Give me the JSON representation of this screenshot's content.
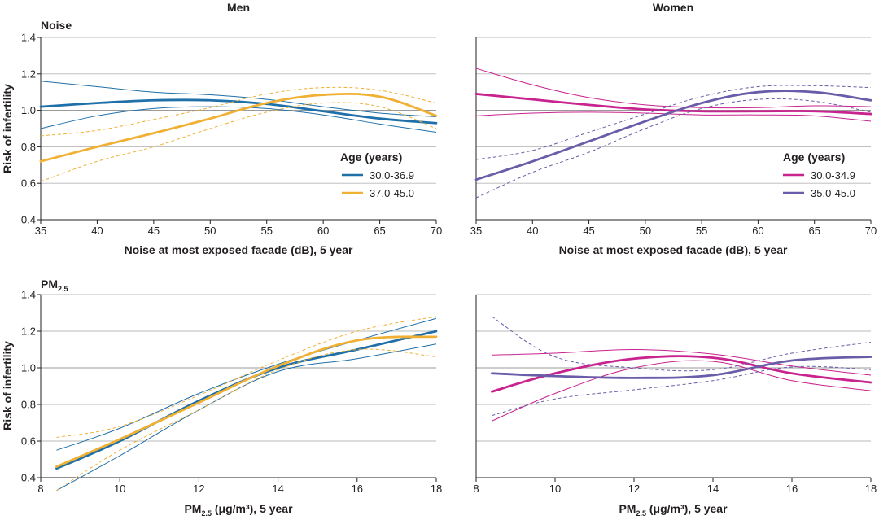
{
  "figure": {
    "columns": [
      "Men",
      "Women"
    ],
    "rows": [
      {
        "label": "Noise",
        "label_sub": ""
      },
      {
        "label": "PM",
        "label_sub": "2.5"
      }
    ],
    "ylabel": "Risk of infertility",
    "xlabels": {
      "noise": {
        "main": "Noise at most exposed facade (dB), 5 year"
      },
      "pm": {
        "prefix": "PM",
        "sub": "2.5",
        "rest": " (μg/m³), 5 year"
      }
    },
    "legend_title": "Age (years)"
  },
  "colors": {
    "men_young": "#1f6fa8",
    "men_old": "#f0b034",
    "women_young": "#c8238e",
    "women_old": "#6a5ca8",
    "grid": "#b8b8b8",
    "axis": "#231f20",
    "ref": "#9a9a9a"
  },
  "chart_data": [
    {
      "id": "noise-men",
      "type": "line",
      "title": "Men",
      "row_label": "Noise",
      "xlabel": "Noise at most exposed facade (dB), 5 year",
      "ylabel": "Risk of infertility",
      "xlim": [
        35,
        70
      ],
      "ylim": [
        0.4,
        1.4
      ],
      "xticks": [
        "35",
        "40",
        "45",
        "50",
        "55",
        "60",
        "65",
        "70"
      ],
      "yticks": [
        "0.4",
        "0.6",
        "0.8",
        "1.0",
        "1.2",
        "1.4"
      ],
      "legend": {
        "title": "Age (years)",
        "position": "right"
      },
      "series": [
        {
          "name": "30.0-36.9",
          "color": "#1f6fa8",
          "ci_style": "solid",
          "x": [
            35,
            40,
            45,
            50,
            55,
            60,
            65,
            70
          ],
          "estimate": [
            1.02,
            1.04,
            1.055,
            1.055,
            1.035,
            0.995,
            0.955,
            0.93
          ],
          "lower": [
            0.9,
            0.97,
            1.01,
            1.02,
            1.01,
            0.975,
            0.925,
            0.88
          ],
          "upper": [
            1.16,
            1.13,
            1.1,
            1.085,
            1.06,
            1.02,
            0.985,
            0.965
          ]
        },
        {
          "name": "37.0-45.0",
          "color": "#f0b034",
          "ci_style": "dashed",
          "x": [
            35,
            40,
            45,
            50,
            55,
            60,
            65,
            70
          ],
          "estimate": [
            0.72,
            0.8,
            0.875,
            0.955,
            1.04,
            1.085,
            1.075,
            0.97
          ],
          "lower": [
            0.61,
            0.72,
            0.8,
            0.9,
            0.99,
            1.04,
            1.02,
            0.9
          ],
          "upper": [
            0.86,
            0.89,
            0.95,
            1.015,
            1.09,
            1.125,
            1.11,
            1.04
          ]
        }
      ]
    },
    {
      "id": "noise-women",
      "type": "line",
      "title": "Women",
      "row_label": "",
      "xlabel": "Noise at most exposed facade (dB), 5 year",
      "ylabel": "",
      "xlim": [
        35,
        70
      ],
      "ylim": [
        0.4,
        1.4
      ],
      "xticks": [
        "35",
        "40",
        "45",
        "50",
        "55",
        "60",
        "65",
        "70"
      ],
      "yticks": [],
      "legend": {
        "title": "Age (years)",
        "position": "right"
      },
      "series": [
        {
          "name": "30.0-34.9",
          "color": "#c8238e",
          "ci_style": "solid",
          "x": [
            35,
            40,
            45,
            50,
            55,
            60,
            65,
            70
          ],
          "estimate": [
            1.09,
            1.06,
            1.03,
            1.005,
            0.995,
            0.995,
            0.995,
            0.98
          ],
          "lower": [
            0.97,
            0.985,
            0.99,
            0.985,
            0.975,
            0.975,
            0.97,
            0.94
          ],
          "upper": [
            1.23,
            1.14,
            1.07,
            1.03,
            1.015,
            1.015,
            1.025,
            1.02
          ]
        },
        {
          "name": "35.0-45.0",
          "color": "#6a5ca8",
          "ci_style": "dashed",
          "x": [
            35,
            40,
            45,
            50,
            55,
            60,
            65,
            70
          ],
          "estimate": [
            0.62,
            0.72,
            0.83,
            0.94,
            1.04,
            1.1,
            1.1,
            1.055
          ],
          "lower": [
            0.52,
            0.66,
            0.77,
            0.9,
            1.01,
            1.06,
            1.05,
            0.99
          ],
          "upper": [
            0.73,
            0.78,
            0.88,
            0.98,
            1.075,
            1.13,
            1.135,
            1.125
          ]
        }
      ]
    },
    {
      "id": "pm-men",
      "type": "line",
      "title": "",
      "row_label": "PM2.5",
      "xlabel": "PM2.5 (μg/m³), 5 year",
      "ylabel": "Risk of infertility",
      "xlim": [
        8,
        18
      ],
      "ylim": [
        0.4,
        1.4
      ],
      "xticks": [
        "8",
        "10",
        "12",
        "14",
        "16",
        "18"
      ],
      "yticks": [
        "0.4",
        "0.6",
        "0.8",
        "1.0",
        "1.2",
        "1.4"
      ],
      "series": [
        {
          "name": "30.0-36.9",
          "color": "#1f6fa8",
          "ci_style": "solid",
          "x": [
            8.4,
            10,
            12,
            14,
            16,
            18
          ],
          "estimate": [
            0.45,
            0.6,
            0.82,
            1.0,
            1.1,
            1.2
          ],
          "lower": [
            0.33,
            0.52,
            0.77,
            0.98,
            1.05,
            1.13
          ],
          "upper": [
            0.55,
            0.67,
            0.86,
            1.02,
            1.15,
            1.27
          ]
        },
        {
          "name": "37.0-45.0",
          "color": "#f0b034",
          "ci_style": "dashed",
          "x": [
            8.4,
            10,
            12,
            14,
            16,
            18
          ],
          "estimate": [
            0.46,
            0.61,
            0.81,
            1.01,
            1.15,
            1.17
          ],
          "lower": [
            0.33,
            0.55,
            0.77,
            0.99,
            1.1,
            1.06
          ],
          "upper": [
            0.62,
            0.68,
            0.85,
            1.04,
            1.2,
            1.28
          ]
        }
      ]
    },
    {
      "id": "pm-women",
      "type": "line",
      "title": "",
      "row_label": "",
      "xlabel": "PM2.5 (μg/m³), 5 year",
      "ylabel": "",
      "xlim": [
        8,
        18
      ],
      "ylim": [
        0.4,
        1.4
      ],
      "xticks": [
        "8",
        "10",
        "12",
        "14",
        "16",
        "18"
      ],
      "yticks": [],
      "series": [
        {
          "name": "30.0-34.9",
          "color": "#c8238e",
          "ci_style": "solid",
          "x": [
            8.4,
            10,
            12,
            14,
            16,
            18
          ],
          "estimate": [
            0.87,
            0.97,
            1.05,
            1.055,
            0.97,
            0.92
          ],
          "lower": [
            0.71,
            0.86,
            1.0,
            1.035,
            0.93,
            0.875
          ],
          "upper": [
            1.07,
            1.08,
            1.1,
            1.075,
            1.01,
            0.96
          ]
        },
        {
          "name": "35.0-45.0",
          "color": "#6a5ca8",
          "ci_style": "dashed",
          "x": [
            8.4,
            10,
            12,
            14,
            16,
            18
          ],
          "estimate": [
            0.97,
            0.955,
            0.945,
            0.96,
            1.04,
            1.06
          ],
          "lower": [
            0.74,
            0.83,
            0.88,
            0.93,
            1.005,
            0.99
          ],
          "upper": [
            1.28,
            1.06,
            1.0,
            0.99,
            1.08,
            1.14
          ]
        }
      ]
    }
  ]
}
